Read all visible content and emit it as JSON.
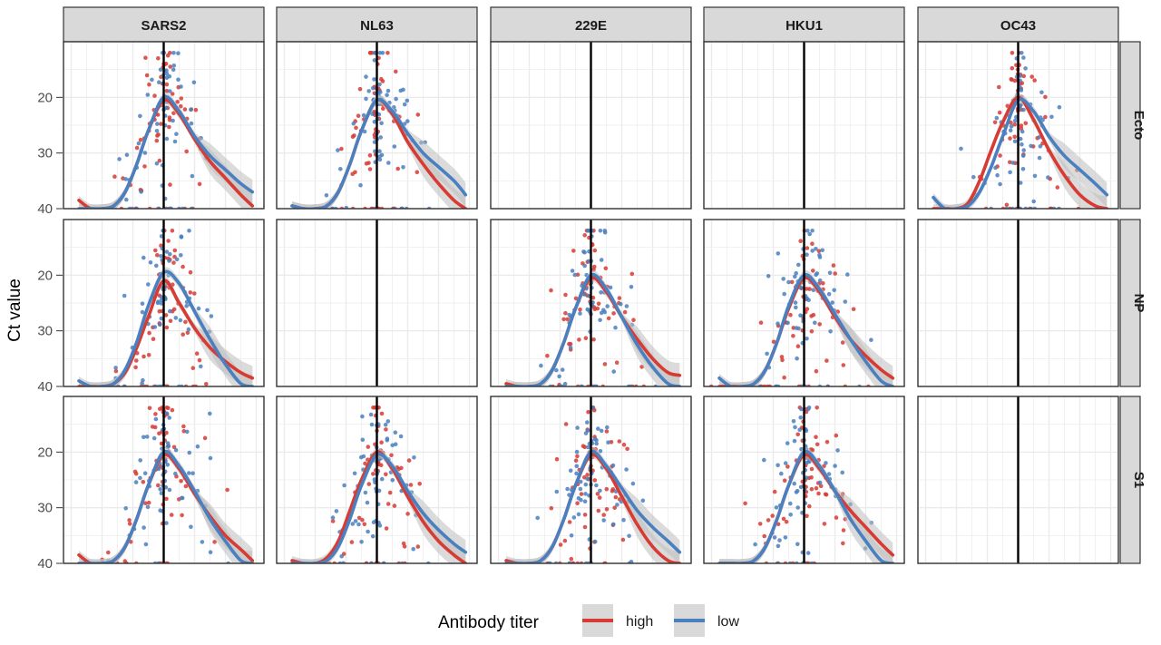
{
  "chart_data": {
    "type": "scatter",
    "ylabel": "Ct value",
    "xlabel": "",
    "ylim": [
      40,
      10
    ],
    "y_reversed": true,
    "y_ticks": [
      20,
      30,
      40
    ],
    "x_tick_labels_shown": false,
    "grid": true,
    "columns": [
      "SARS2",
      "NL63",
      "229E",
      "HKU1",
      "OC43"
    ],
    "rows": [
      "Ecto",
      "NP",
      "S1"
    ],
    "legend": {
      "title": "Antibody titer",
      "position": "bottom",
      "entries": [
        {
          "name": "high",
          "color": "#d73b34"
        },
        {
          "name": "low",
          "color": "#4a80c0"
        }
      ]
    },
    "colors": {
      "high": "#d73b34",
      "low": "#4a80c0",
      "ribbon": "#bdbdbd",
      "strip": "#d9d9d9",
      "vline": "#000000"
    },
    "x_range": [
      -130,
      130
    ],
    "reference_line_x": 0,
    "fit_x": [
      -110,
      -95,
      -80,
      -65,
      -50,
      -35,
      -20,
      0,
      20,
      40,
      60,
      80,
      100,
      115
    ],
    "panels": [
      {
        "row": "Ecto",
        "col": "SARS2",
        "empty": false,
        "curves": [
          {
            "name": "high",
            "y": [
              38.5,
              40,
              40,
              39.5,
              37,
              32,
              26,
              20.5,
              23,
              27.5,
              31.5,
              34.5,
              37.5,
              39.5
            ]
          },
          {
            "name": "low",
            "y": [
              40,
              40,
              40,
              39.5,
              37,
              32,
              26,
              20,
              22.5,
              27,
              30.5,
              33,
              35.5,
              37
            ]
          }
        ]
      },
      {
        "row": "Ecto",
        "col": "NL63",
        "empty": false,
        "curves": [
          {
            "name": "high",
            "y": [
              39.5,
              40,
              40,
              39.5,
              37,
              32,
              26,
              20.5,
              23,
              28,
              32,
              35.5,
              38.5,
              40
            ]
          },
          {
            "name": "low",
            "y": [
              39.5,
              40,
              40,
              39.5,
              37,
              32,
              26,
              20.5,
              22.5,
              26.5,
              30,
              32.5,
              35,
              37.5
            ]
          }
        ]
      },
      {
        "row": "Ecto",
        "col": "229E",
        "empty": true,
        "curves": []
      },
      {
        "row": "Ecto",
        "col": "HKU1",
        "empty": true,
        "curves": []
      },
      {
        "row": "Ecto",
        "col": "OC43",
        "empty": false,
        "curves": [
          {
            "name": "high",
            "y": [
              40,
              40,
              40,
              39,
              35,
              29.5,
              24.5,
              20,
              24,
              29.5,
              34,
              37.5,
              39.5,
              40
            ]
          },
          {
            "name": "low",
            "y": [
              38,
              40,
              40,
              39.5,
              37,
              32.5,
              27,
              20.5,
              22.5,
              27,
              30.5,
              33,
              35.5,
              37.5
            ]
          }
        ]
      },
      {
        "row": "NP",
        "col": "SARS2",
        "empty": false,
        "curves": [
          {
            "name": "high",
            "y": [
              40,
              40,
              40,
              39.5,
              37.5,
              33,
              27.5,
              21,
              25,
              29.5,
              33,
              35.5,
              37.5,
              38.5
            ]
          },
          {
            "name": "low",
            "y": [
              39,
              40,
              40,
              39.5,
              37,
              32,
              25.5,
              19.5,
              21.5,
              26.5,
              31.5,
              36,
              39.5,
              40
            ]
          }
        ]
      },
      {
        "row": "NP",
        "col": "NL63",
        "empty": true,
        "curves": []
      },
      {
        "row": "NP",
        "col": "229E",
        "empty": false,
        "curves": [
          {
            "name": "high",
            "y": [
              39.5,
              40,
              40,
              39.5,
              37,
              32,
              26,
              20.5,
              23,
              27.5,
              31.5,
              35,
              37.5,
              38
            ]
          },
          {
            "name": "low",
            "y": [
              40,
              40,
              40,
              39.5,
              37,
              32,
              26,
              20,
              22.5,
              27.5,
              32.5,
              36.5,
              39.5,
              40
            ]
          }
        ]
      },
      {
        "row": "NP",
        "col": "HKU1",
        "empty": false,
        "curves": [
          {
            "name": "high",
            "y": [
              40,
              40,
              40,
              39.5,
              37,
              32,
              26,
              20.5,
              23,
              27.5,
              31.5,
              34.5,
              37,
              38.5
            ]
          },
          {
            "name": "low",
            "y": [
              38.5,
              40,
              40,
              39.5,
              37,
              32,
              25.5,
              20,
              22.5,
              27,
              31.5,
              35.5,
              39,
              40
            ]
          }
        ]
      },
      {
        "row": "NP",
        "col": "OC43",
        "empty": true,
        "curves": []
      },
      {
        "row": "S1",
        "col": "SARS2",
        "empty": false,
        "curves": [
          {
            "name": "high",
            "y": [
              38.5,
              40,
              40,
              39.5,
              37,
              32,
              26,
              20.5,
              23,
              27.5,
              31.5,
              35,
              37.5,
              39.5
            ]
          },
          {
            "name": "low",
            "y": [
              40,
              40,
              40,
              39.5,
              37,
              32,
              26,
              20,
              22.5,
              27,
              32,
              36,
              39.5,
              40
            ]
          }
        ]
      },
      {
        "row": "S1",
        "col": "NL63",
        "empty": false,
        "curves": [
          {
            "name": "high",
            "y": [
              39.5,
              40,
              40,
              39,
              36,
              30.5,
              25,
              20,
              23,
              28,
              32.5,
              36,
              38.5,
              40
            ]
          },
          {
            "name": "low",
            "y": [
              40,
              40,
              40,
              39.5,
              37,
              32,
              26,
              20.5,
              22.5,
              27,
              31,
              34,
              36.5,
              38
            ]
          }
        ]
      },
      {
        "row": "S1",
        "col": "229E",
        "empty": false,
        "curves": [
          {
            "name": "high",
            "y": [
              39.5,
              40,
              40,
              39.5,
              37,
              32,
              26,
              20.5,
              23,
              28,
              33,
              37,
              39.5,
              40
            ]
          },
          {
            "name": "low",
            "y": [
              40,
              40,
              40,
              39.5,
              37,
              32,
              26,
              20,
              22.5,
              26.5,
              30.5,
              33.5,
              36,
              38
            ]
          }
        ]
      },
      {
        "row": "S1",
        "col": "HKU1",
        "empty": false,
        "curves": [
          {
            "name": "high",
            "y": [
              40,
              40,
              40,
              39.5,
              37,
              32,
              26,
              20.5,
              23,
              27,
              30.5,
              33.5,
              36.5,
              38.5
            ]
          },
          {
            "name": "low",
            "y": [
              40,
              40,
              40,
              39.5,
              37,
              32,
              26,
              20,
              22.5,
              27,
              32,
              36,
              39.5,
              40
            ]
          }
        ]
      },
      {
        "row": "S1",
        "col": "OC43",
        "empty": true,
        "curves": []
      }
    ]
  }
}
